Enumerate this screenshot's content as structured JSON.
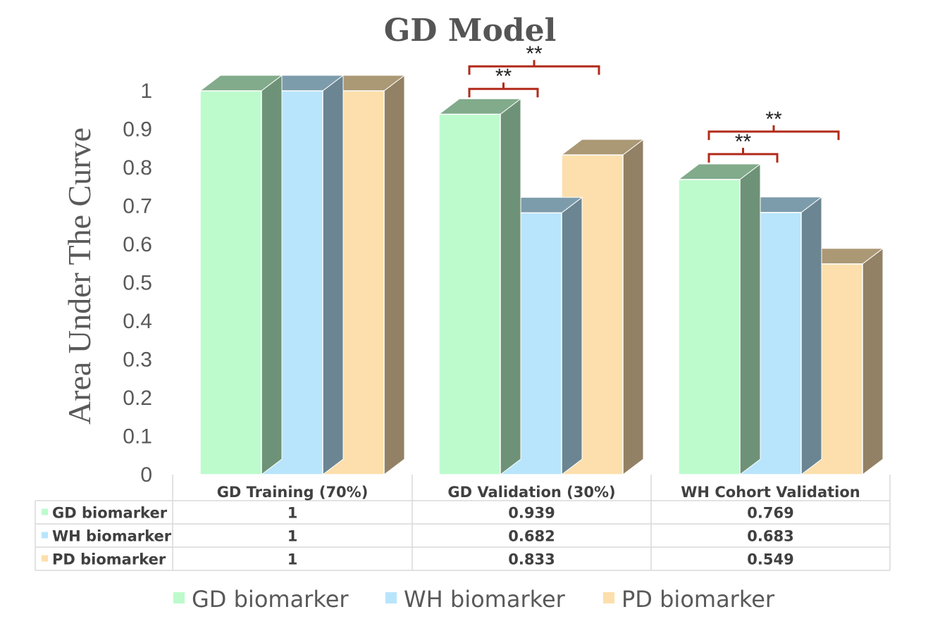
{
  "chart_data": {
    "type": "bar",
    "title": "GD Model",
    "xlabel": "",
    "ylabel": "Area Under The Curve",
    "ylim": [
      0,
      1
    ],
    "yticks": [
      "0",
      "0.1",
      "0.2",
      "0.3",
      "0.4",
      "0.5",
      "0.6",
      "0.7",
      "0.8",
      "0.9",
      "1"
    ],
    "categories": [
      "GD Training (70%)",
      "GD Validation (30%)",
      "WH Cohort Validation"
    ],
    "series": [
      {
        "name": "GD biomarker",
        "values": [
          1,
          0.939,
          0.769
        ],
        "labels": [
          "1",
          "0.939",
          "0.769"
        ],
        "color": "#BDFBCD"
      },
      {
        "name": "WH biomarker",
        "values": [
          1,
          0.682,
          0.683
        ],
        "labels": [
          "1",
          "0.682",
          "0.683"
        ],
        "color": "#B8E5FC"
      },
      {
        "name": "PD biomarker",
        "values": [
          1,
          0.833,
          0.549
        ],
        "labels": [
          "1",
          "0.833",
          "0.549"
        ],
        "color": "#FCDFAC"
      }
    ],
    "significance": [
      {
        "category": 1,
        "from": 0,
        "to": 1,
        "label": "**"
      },
      {
        "category": 1,
        "from": 0,
        "to": 2,
        "label": "**"
      },
      {
        "category": 2,
        "from": 0,
        "to": 1,
        "label": "**"
      },
      {
        "category": 2,
        "from": 0,
        "to": 2,
        "label": "**"
      }
    ],
    "bracket_color": "#B22A1A",
    "style": "3d-clustered-column",
    "data_table": true,
    "legend_position": "bottom",
    "grid": false
  }
}
